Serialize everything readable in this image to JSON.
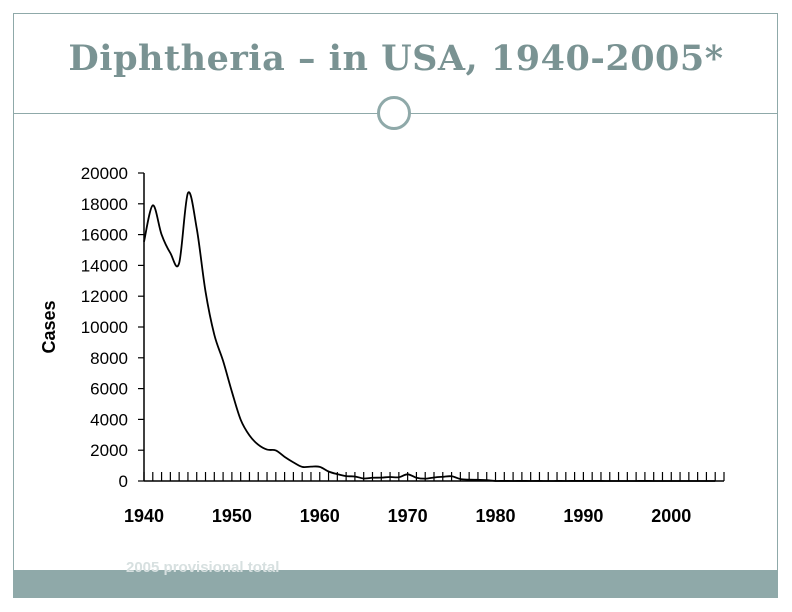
{
  "slide": {
    "title": "Diphtheria – in USA, 1940-2005*",
    "footnote": "2005 provisional total"
  },
  "colors": {
    "accent": "#8fa9a9",
    "title": "#7a9393",
    "line": "#000000"
  },
  "chart_data": {
    "type": "line",
    "title": "",
    "xlabel": "",
    "ylabel": "Cases",
    "xlim": [
      1940,
      2006
    ],
    "ylim": [
      0,
      20000
    ],
    "yticks": [
      0,
      2000,
      4000,
      6000,
      8000,
      10000,
      12000,
      14000,
      16000,
      18000,
      20000
    ],
    "ytick_labels": [
      "0",
      "2000",
      "4000",
      "6000",
      "8000",
      "10000",
      "12000",
      "14000",
      "16000",
      "18000",
      "20000"
    ],
    "xtick_labels": [
      {
        "x": 1940,
        "label": "1940"
      },
      {
        "x": 1950,
        "label": "1950"
      },
      {
        "x": 1960,
        "label": "1960"
      },
      {
        "x": 1970,
        "label": "1970"
      },
      {
        "x": 1980,
        "label": "1980"
      },
      {
        "x": 1990,
        "label": "1990"
      },
      {
        "x": 2000,
        "label": "2000"
      }
    ],
    "series": [
      {
        "name": "Cases",
        "x": [
          1940,
          1941,
          1942,
          1943,
          1944,
          1945,
          1946,
          1947,
          1948,
          1949,
          1950,
          1951,
          1952,
          1953,
          1954,
          1955,
          1956,
          1957,
          1958,
          1959,
          1960,
          1961,
          1962,
          1963,
          1964,
          1965,
          1966,
          1967,
          1968,
          1969,
          1970,
          1971,
          1972,
          1973,
          1974,
          1975,
          1976,
          1977,
          1978,
          1979,
          1980,
          1981,
          1982,
          1983,
          1984,
          1985,
          1986,
          1987,
          1988,
          1989,
          1990,
          1991,
          1992,
          1993,
          1994,
          1995,
          1996,
          1997,
          1998,
          1999,
          2000,
          2001,
          2002,
          2003,
          2004,
          2005
        ],
        "values": [
          15536,
          17900,
          16000,
          14800,
          14150,
          18700,
          16400,
          12300,
          9500,
          7800,
          5800,
          3980,
          2960,
          2355,
          2040,
          1984,
          1568,
          1211,
          918,
          934,
          918,
          617,
          444,
          314,
          293,
          164,
          209,
          219,
          260,
          241,
          435,
          215,
          152,
          228,
          272,
          307,
          128,
          84,
          76,
          59,
          3,
          5,
          2,
          5,
          1,
          3,
          0,
          3,
          2,
          3,
          4,
          5,
          4,
          0,
          2,
          0,
          2,
          4,
          1,
          1,
          1,
          2,
          1,
          1,
          0,
          0
        ]
      }
    ]
  }
}
